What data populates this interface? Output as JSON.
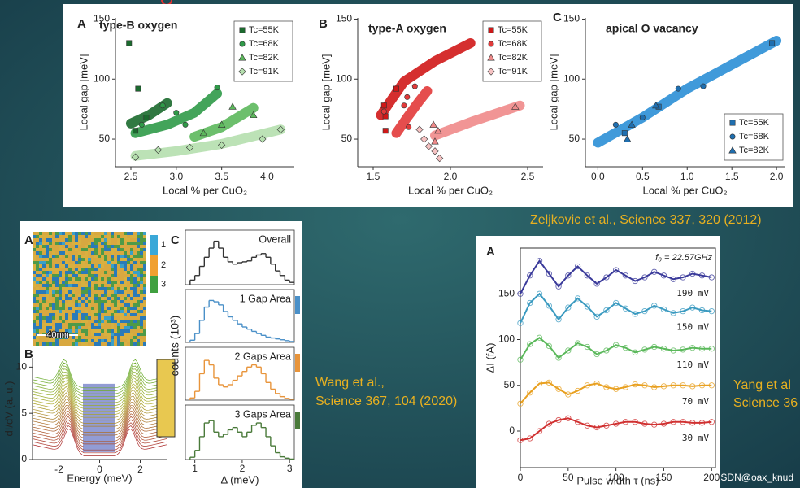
{
  "chart_data": [
    {
      "type": "scatter",
      "label": "A",
      "title": "type-B oxygen",
      "xlabel": "Local % per CuO₂",
      "ylabel": "Local gap [meV]",
      "xlim": [
        2.33,
        4.3
      ],
      "ylim": [
        27,
        151
      ],
      "xticks": [
        2.5,
        {
          "value": 3,
          "label": "3.0"
        },
        3.5,
        {
          "value": 4,
          "label": "4.0"
        }
      ],
      "yticks": [
        50,
        100,
        150
      ],
      "legend": "top-right",
      "series": [
        {
          "name": "Tc=55K",
          "color": "#1b6a2e",
          "marker": "square",
          "x": [
            2.48,
            2.58,
            2.55,
            2.67
          ],
          "y": [
            130,
            92,
            57,
            68
          ],
          "fit": {
            "x": [
              2.5,
              2.7,
              2.9
            ],
            "y": [
              63,
              70,
              80
            ]
          }
        },
        {
          "name": "Tc=68K",
          "color": "#2f9a48",
          "marker": "circle",
          "x": [
            2.62,
            2.85,
            3.0,
            3.1,
            3.45
          ],
          "y": [
            62,
            78,
            72,
            62,
            93
          ],
          "fit": {
            "x": [
              2.55,
              2.9,
              3.2,
              3.45
            ],
            "y": [
              55,
              62,
              72,
              88
            ]
          }
        },
        {
          "name": "Tc=82K",
          "color": "#5cb85c",
          "marker": "triangle",
          "x": [
            3.3,
            3.5,
            3.62,
            3.85
          ],
          "y": [
            55,
            62,
            77,
            70
          ],
          "fit": {
            "x": [
              3.2,
              3.5,
              3.85
            ],
            "y": [
              52,
              60,
              76
            ]
          }
        },
        {
          "name": "Tc=91K",
          "color": "#b5dfae",
          "marker": "diamond",
          "x": [
            2.55,
            2.8,
            3.15,
            3.5,
            3.95,
            4.15
          ],
          "y": [
            35,
            41,
            43,
            45,
            50,
            58
          ],
          "fit": {
            "x": [
              2.55,
              3.0,
              3.5,
              4.15
            ],
            "y": [
              36,
              40,
              46,
              58
            ]
          }
        }
      ]
    },
    {
      "type": "scatter",
      "label": "B",
      "title": "type-A oxygen",
      "xlabel": "Local % per CuO₂",
      "ylabel": "Local gap [meV]",
      "xlim": [
        1.4,
        2.6
      ],
      "ylim": [
        27,
        151
      ],
      "xticks": [
        1.5,
        {
          "value": 2,
          "label": "2.0"
        },
        2.5
      ],
      "yticks": [
        50,
        100,
        150
      ],
      "legend": "top-right",
      "series": [
        {
          "name": "Tc=55K",
          "color": "#d01818",
          "marker": "square",
          "x": [
            1.57,
            1.58,
            1.65,
            1.58
          ],
          "y": [
            78,
            57,
            92,
            69
          ],
          "fit": {
            "x": [
              1.55,
              1.7,
              1.9,
              2.13
            ],
            "y": [
              70,
              98,
              115,
              130
            ]
          }
        },
        {
          "name": "Tc=68K",
          "color": "#e23a3a",
          "marker": "circle",
          "x": [
            1.57,
            1.7,
            1.72,
            1.77,
            1.73
          ],
          "y": [
            73,
            78,
            85,
            94,
            60
          ],
          "fit": {
            "x": [
              1.65,
              1.72,
              1.8,
              1.85
            ],
            "y": [
              55,
              68,
              82,
              90
            ]
          }
        },
        {
          "name": "Tc=82K",
          "color": "#ef8a8a",
          "marker": "triangle",
          "x": [
            1.89,
            1.92,
            1.9,
            2.42
          ],
          "y": [
            62,
            57,
            48,
            77
          ],
          "fit": {
            "x": [
              1.9,
              2.15,
              2.45
            ],
            "y": [
              53,
              65,
              78
            ]
          }
        },
        {
          "name": "Tc=91K",
          "color": "#f6c2c2",
          "marker": "diamond",
          "x": [
            1.8,
            1.83,
            1.86,
            1.9,
            1.93
          ],
          "y": [
            58,
            50,
            44,
            40,
            34
          ]
        }
      ]
    },
    {
      "type": "scatter",
      "label": "C",
      "title": "apical O vacancy",
      "xlabel": "Local % per CuO₂",
      "ylabel": "Local gap [meV]",
      "xlim": [
        -0.14,
        2.09
      ],
      "ylim": [
        27,
        151
      ],
      "xticks": [
        {
          "value": 0,
          "label": "0.0"
        },
        0.5,
        {
          "value": 1,
          "label": "1.0"
        },
        1.5,
        {
          "value": 2,
          "label": "2.0"
        }
      ],
      "yticks": [
        50,
        100,
        150
      ],
      "legend": "bottom-right",
      "fit": {
        "x": [
          0,
          0.5,
          1,
          1.5,
          2
        ],
        "y": [
          47,
          68,
          92,
          112,
          132
        ],
        "color": "#2b8fd6"
      },
      "series": [
        {
          "name": "Tc=55K",
          "color": "#1f6fb0",
          "marker": "square",
          "x": [
            0.3,
            0.68,
            1.95
          ],
          "y": [
            55,
            77,
            130
          ]
        },
        {
          "name": "Tc=68K",
          "color": "#1f6fb0",
          "marker": "circle",
          "x": [
            0.2,
            0.5,
            0.9,
            1.18
          ],
          "y": [
            62,
            68,
            92,
            94
          ]
        },
        {
          "name": "Tc=82K",
          "color": "#1f6fb0",
          "marker": "triangle",
          "x": [
            0.33,
            0.38,
            0.65
          ],
          "y": [
            50,
            62,
            78
          ]
        }
      ]
    },
    {
      "type": "map",
      "label": "A",
      "scale_bar": "40nm",
      "legend": [
        {
          "name": "1",
          "color": "#3aa8d8"
        },
        {
          "name": "2",
          "color": "#f0a030"
        },
        {
          "name": "3",
          "color": "#40a040"
        }
      ]
    },
    {
      "type": "spectra",
      "label": "B",
      "xlabel": "Energy (meV)",
      "ylabel": "dI/dV (a. u.)",
      "xlim": [
        -3.3,
        3.3
      ],
      "ylim": [
        0,
        11
      ],
      "xticks": [
        -2,
        0,
        2
      ],
      "yticks": [
        0,
        5,
        10
      ]
    },
    {
      "type": "histogram",
      "label": "C",
      "xlabel": "Δ (meV)",
      "ylabel": "counts (10³)",
      "xlim": [
        0.8,
        3.1
      ],
      "ylim": [
        0,
        10.5
      ],
      "xticks": [
        1,
        2,
        3
      ],
      "bins": [
        0.9,
        1.0,
        1.1,
        1.2,
        1.3,
        1.4,
        1.5,
        1.6,
        1.7,
        1.8,
        1.9,
        2.0,
        2.1,
        2.2,
        2.3,
        2.4,
        2.5,
        2.6,
        2.7,
        2.8,
        2.9,
        3.0,
        3.1
      ],
      "panels": [
        {
          "title": "Overall",
          "color": "#333333",
          "values": [
            1,
            2,
            4,
            6,
            8,
            9.5,
            8,
            6,
            5,
            4.5,
            4.8,
            5,
            5.2,
            6,
            6.5,
            6.8,
            6,
            4.5,
            3,
            2,
            1,
            0.5
          ]
        },
        {
          "title": "1 Gap Area",
          "color": "#4a90c8",
          "values": [
            0.5,
            2,
            5,
            8,
            9.5,
            9.2,
            8.5,
            7,
            5.8,
            5,
            4.2,
            3.5,
            3,
            2.5,
            2,
            1.6,
            1.2,
            1,
            0.8,
            0.6,
            0.4,
            0.2
          ]
        },
        {
          "title": "2 Gaps Area",
          "color": "#e8943a",
          "values": [
            0.5,
            2,
            6,
            9,
            8,
            5,
            3.5,
            3,
            3.5,
            4.5,
            5.5,
            6.5,
            7.5,
            8,
            7.5,
            6,
            4,
            2.5,
            1.5,
            0.8,
            0.4,
            0.2
          ]
        },
        {
          "title": "3 Gaps Area",
          "color": "#4a7a3a",
          "values": [
            0.5,
            2,
            5,
            8,
            8.5,
            6,
            5,
            5.5,
            6.5,
            7,
            6,
            5,
            6,
            7.5,
            8,
            7,
            5,
            3,
            1.5,
            0.6,
            0.3,
            0.1
          ]
        }
      ]
    },
    {
      "type": "line",
      "label": "A",
      "annotation": "f₀ = 22.57GHz",
      "xlabel": "Pulse width τ (ns)",
      "ylabel": "ΔI (fA)",
      "xlim": [
        0,
        204
      ],
      "ylim": [
        -40,
        200
      ],
      "xticks": [
        0,
        50,
        100,
        150,
        200
      ],
      "yticks": [
        0,
        50,
        100,
        150
      ],
      "x": [
        0,
        10,
        20,
        30,
        40,
        50,
        60,
        70,
        80,
        90,
        100,
        110,
        120,
        130,
        140,
        150,
        160,
        170,
        180,
        190,
        200
      ],
      "series": [
        {
          "name": "190 mV",
          "color": "#3a3a9a",
          "values": [
            150,
            170,
            186,
            172,
            158,
            170,
            180,
            170,
            161,
            168,
            176,
            170,
            164,
            168,
            174,
            170,
            166,
            168,
            172,
            170,
            168
          ]
        },
        {
          "name": "150 mV",
          "color": "#3a9ac0",
          "values": [
            118,
            140,
            150,
            137,
            122,
            135,
            145,
            136,
            125,
            132,
            140,
            134,
            128,
            131,
            137,
            133,
            129,
            131,
            135,
            132,
            131
          ]
        },
        {
          "name": "110 mV",
          "color": "#5ab85a",
          "values": [
            78,
            95,
            102,
            93,
            80,
            88,
            96,
            92,
            84,
            88,
            94,
            91,
            86,
            89,
            92,
            90,
            88,
            89,
            91,
            90,
            90
          ]
        },
        {
          "name": "70 mV",
          "color": "#e8a020",
          "values": [
            30,
            42,
            52,
            53,
            46,
            40,
            44,
            50,
            52,
            48,
            46,
            48,
            51,
            50,
            48,
            49,
            50,
            50,
            49,
            50,
            50
          ]
        },
        {
          "name": "30 mV",
          "color": "#d03030",
          "values": [
            -10,
            -8,
            0,
            8,
            12,
            14,
            10,
            6,
            4,
            6,
            8,
            10,
            10,
            8,
            7,
            8,
            10,
            10,
            9,
            9,
            10
          ]
        }
      ]
    }
  ],
  "citations": [
    {
      "lines": [
        "Zeljkovic et al., Science 337, 320 (2012)"
      ]
    },
    {
      "lines": [
        "Wang et al.,",
        "Science 367, 104 (2020)"
      ]
    },
    {
      "lines": [
        "Yang et al",
        "Science 36"
      ]
    }
  ],
  "watermark": "CSDN@oax_knud"
}
